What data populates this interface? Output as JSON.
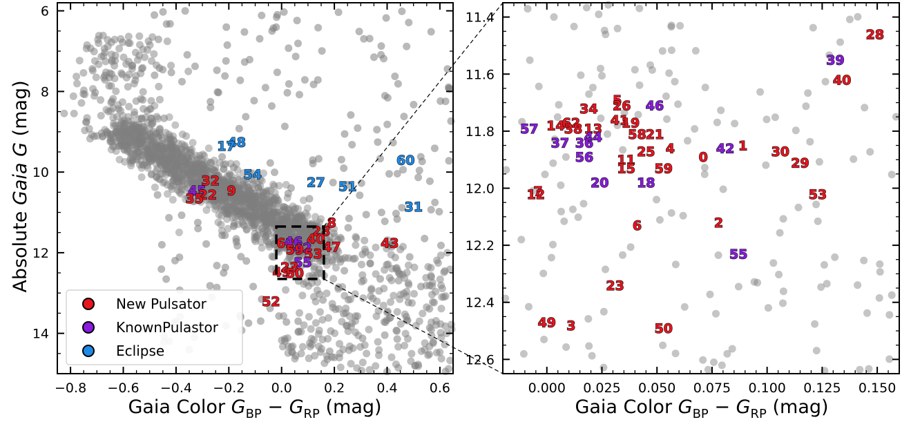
{
  "colors": {
    "new_pulsator": "#e8141e",
    "known_pulsator": "#8a1adf",
    "eclipse": "#1e8ae6",
    "field_star": "#7f7f7f"
  },
  "chart_data": [
    {
      "type": "scatter",
      "xlabel_main": "Gaia Color ",
      "xlabel_sub_bp": "BP",
      "xlabel_sub_rp": "RP",
      "xlabel_unit": "(mag)",
      "ylabel_main": "Absolute ",
      "ylabel_italic": "Gaia G",
      "ylabel_unit": " (mag)",
      "xlim": [
        -0.85,
        0.65
      ],
      "ylim": [
        15.0,
        5.8
      ],
      "xticks": [
        -0.8,
        -0.6,
        -0.4,
        -0.2,
        0.0,
        0.2,
        0.4,
        0.6
      ],
      "xtick_labels": [
        "−0.8",
        "−0.6",
        "−0.4",
        "−0.2",
        "0.0",
        "0.2",
        "0.4",
        "0.6"
      ],
      "yticks": [
        6,
        8,
        10,
        12,
        14
      ],
      "ytick_labels": [
        "6",
        "8",
        "10",
        "12",
        "14"
      ],
      "zoom_box": {
        "x": [
          -0.02,
          0.16
        ],
        "y": [
          11.35,
          12.65
        ]
      },
      "legend": {
        "placement": "lower-left",
        "entries": [
          {
            "label": "New Pulsator",
            "color_key": "new_pulsator"
          },
          {
            "label": "KnownPulastor",
            "color_key": "known_pulsator"
          },
          {
            "label": "Eclipse",
            "color_key": "eclipse"
          }
        ]
      },
      "labeled_stars": [
        {
          "id": "48",
          "x": -0.17,
          "y": 9.25,
          "class": "eclipse"
        },
        {
          "id": "17",
          "x": -0.21,
          "y": 9.35,
          "class": "eclipse"
        },
        {
          "id": "54",
          "x": -0.11,
          "y": 10.05,
          "class": "eclipse"
        },
        {
          "id": "27",
          "x": 0.13,
          "y": 10.25,
          "class": "eclipse"
        },
        {
          "id": "51",
          "x": 0.25,
          "y": 10.35,
          "class": "eclipse"
        },
        {
          "id": "60",
          "x": 0.47,
          "y": 9.7,
          "class": "eclipse"
        },
        {
          "id": "31",
          "x": 0.5,
          "y": 10.85,
          "class": "eclipse"
        },
        {
          "id": "32",
          "x": -0.27,
          "y": 10.2,
          "class": "new_pulsator"
        },
        {
          "id": "45",
          "x": -0.32,
          "y": 10.45,
          "class": "known_pulsator"
        },
        {
          "id": "22",
          "x": -0.28,
          "y": 10.55,
          "class": "new_pulsator"
        },
        {
          "id": "35",
          "x": -0.33,
          "y": 10.65,
          "class": "new_pulsator"
        },
        {
          "id": "9",
          "x": -0.19,
          "y": 10.45,
          "class": "new_pulsator"
        },
        {
          "id": "8",
          "x": 0.19,
          "y": 11.25,
          "class": "new_pulsator"
        },
        {
          "id": "28",
          "x": 0.15,
          "y": 11.45,
          "class": "new_pulsator"
        },
        {
          "id": "40",
          "x": 0.13,
          "y": 11.65,
          "class": "new_pulsator"
        },
        {
          "id": "47",
          "x": 0.19,
          "y": 11.85,
          "class": "new_pulsator"
        },
        {
          "id": "43",
          "x": 0.41,
          "y": 11.75,
          "class": "new_pulsator"
        },
        {
          "id": "62",
          "x": 0.015,
          "y": 11.75,
          "class": "new_pulsator"
        },
        {
          "id": "46",
          "x": 0.045,
          "y": 11.72,
          "class": "known_pulsator"
        },
        {
          "id": "42",
          "x": 0.08,
          "y": 11.87,
          "class": "known_pulsator"
        },
        {
          "id": "59",
          "x": 0.05,
          "y": 11.92,
          "class": "new_pulsator"
        },
        {
          "id": "53",
          "x": 0.12,
          "y": 12.02,
          "class": "new_pulsator"
        },
        {
          "id": "55",
          "x": 0.08,
          "y": 12.23,
          "class": "known_pulsator"
        },
        {
          "id": "23",
          "x": 0.03,
          "y": 12.35,
          "class": "new_pulsator"
        },
        {
          "id": "49",
          "x": 0.0,
          "y": 12.47,
          "class": "new_pulsator"
        },
        {
          "id": "50",
          "x": 0.05,
          "y": 12.5,
          "class": "new_pulsator"
        },
        {
          "id": "52",
          "x": -0.04,
          "y": 13.2,
          "class": "new_pulsator"
        }
      ]
    },
    {
      "type": "scatter",
      "xlabel_main": "Gaia Color ",
      "xlabel_sub_bp": "BP",
      "xlabel_sub_rp": "RP",
      "xlabel_unit": "(mag)",
      "xlim": [
        -0.02,
        0.16
      ],
      "ylim": [
        12.65,
        11.35
      ],
      "xticks": [
        0.0,
        0.025,
        0.05,
        0.075,
        0.1,
        0.125,
        0.15
      ],
      "xtick_labels": [
        "0.000",
        "0.025",
        "0.050",
        "0.075",
        "0.100",
        "0.125",
        "0.150"
      ],
      "yticks": [
        11.4,
        11.6,
        11.8,
        12.0,
        12.2,
        12.4,
        12.6
      ],
      "ytick_labels": [
        "11.4",
        "11.6",
        "11.8",
        "12.0",
        "12.2",
        "12.4",
        "12.6"
      ],
      "labeled_stars": [
        {
          "id": "28",
          "x": 0.149,
          "y": 11.46,
          "class": "new_pulsator"
        },
        {
          "id": "39",
          "x": 0.131,
          "y": 11.55,
          "class": "known_pulsator"
        },
        {
          "id": "40",
          "x": 0.134,
          "y": 11.62,
          "class": "new_pulsator"
        },
        {
          "id": "5",
          "x": 0.032,
          "y": 11.69,
          "class": "new_pulsator"
        },
        {
          "id": "26",
          "x": 0.034,
          "y": 11.71,
          "class": "new_pulsator"
        },
        {
          "id": "46",
          "x": 0.049,
          "y": 11.71,
          "class": "known_pulsator"
        },
        {
          "id": "34",
          "x": 0.019,
          "y": 11.72,
          "class": "new_pulsator"
        },
        {
          "id": "41",
          "x": 0.033,
          "y": 11.76,
          "class": "new_pulsator"
        },
        {
          "id": "19",
          "x": 0.038,
          "y": 11.77,
          "class": "new_pulsator"
        },
        {
          "id": "14",
          "x": 0.004,
          "y": 11.78,
          "class": "new_pulsator"
        },
        {
          "id": "62",
          "x": 0.011,
          "y": 11.77,
          "class": "new_pulsator"
        },
        {
          "id": "57",
          "x": -0.008,
          "y": 11.79,
          "class": "known_pulsator"
        },
        {
          "id": "38",
          "x": 0.012,
          "y": 11.79,
          "class": "new_pulsator"
        },
        {
          "id": "13",
          "x": 0.021,
          "y": 11.79,
          "class": "new_pulsator"
        },
        {
          "id": "58",
          "x": 0.041,
          "y": 11.81,
          "class": "new_pulsator"
        },
        {
          "id": "21",
          "x": 0.049,
          "y": 11.81,
          "class": "new_pulsator"
        },
        {
          "id": "44",
          "x": 0.021,
          "y": 11.82,
          "class": "known_pulsator"
        },
        {
          "id": "37",
          "x": 0.006,
          "y": 11.84,
          "class": "known_pulsator"
        },
        {
          "id": "36",
          "x": 0.017,
          "y": 11.84,
          "class": "known_pulsator"
        },
        {
          "id": "4",
          "x": 0.056,
          "y": 11.86,
          "class": "new_pulsator"
        },
        {
          "id": "25",
          "x": 0.045,
          "y": 11.87,
          "class": "new_pulsator"
        },
        {
          "id": "42",
          "x": 0.081,
          "y": 11.86,
          "class": "known_pulsator"
        },
        {
          "id": "1",
          "x": 0.089,
          "y": 11.85,
          "class": "new_pulsator"
        },
        {
          "id": "30",
          "x": 0.106,
          "y": 11.87,
          "class": "new_pulsator"
        },
        {
          "id": "0",
          "x": 0.071,
          "y": 11.89,
          "class": "new_pulsator"
        },
        {
          "id": "29",
          "x": 0.115,
          "y": 11.91,
          "class": "new_pulsator"
        },
        {
          "id": "56",
          "x": 0.017,
          "y": 11.89,
          "class": "known_pulsator"
        },
        {
          "id": "11",
          "x": 0.036,
          "y": 11.9,
          "class": "new_pulsator"
        },
        {
          "id": "15",
          "x": 0.036,
          "y": 11.93,
          "class": "new_pulsator"
        },
        {
          "id": "59",
          "x": 0.053,
          "y": 11.93,
          "class": "new_pulsator"
        },
        {
          "id": "20",
          "x": 0.024,
          "y": 11.98,
          "class": "known_pulsator"
        },
        {
          "id": "18",
          "x": 0.045,
          "y": 11.98,
          "class": "known_pulsator"
        },
        {
          "id": "7",
          "x": -0.004,
          "y": 12.01,
          "class": "new_pulsator"
        },
        {
          "id": "12",
          "x": -0.005,
          "y": 12.02,
          "class": "new_pulsator"
        },
        {
          "id": "53",
          "x": 0.123,
          "y": 12.02,
          "class": "new_pulsator"
        },
        {
          "id": "2",
          "x": 0.078,
          "y": 12.12,
          "class": "new_pulsator"
        },
        {
          "id": "6",
          "x": 0.041,
          "y": 12.13,
          "class": "new_pulsator"
        },
        {
          "id": "55",
          "x": 0.087,
          "y": 12.23,
          "class": "known_pulsator"
        },
        {
          "id": "23",
          "x": 0.031,
          "y": 12.34,
          "class": "new_pulsator"
        },
        {
          "id": "49",
          "x": 0.0,
          "y": 12.47,
          "class": "new_pulsator"
        },
        {
          "id": "3",
          "x": 0.011,
          "y": 12.48,
          "class": "new_pulsator"
        },
        {
          "id": "50",
          "x": 0.053,
          "y": 12.49,
          "class": "new_pulsator"
        }
      ]
    }
  ]
}
